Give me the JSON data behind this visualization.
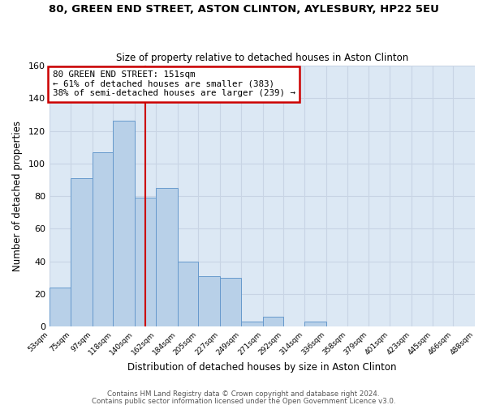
{
  "title": "80, GREEN END STREET, ASTON CLINTON, AYLESBURY, HP22 5EU",
  "subtitle": "Size of property relative to detached houses in Aston Clinton",
  "xlabel": "Distribution of detached houses by size in Aston Clinton",
  "ylabel": "Number of detached properties",
  "bin_edges": [
    53,
    75,
    97,
    118,
    140,
    162,
    184,
    205,
    227,
    249,
    271,
    292,
    314,
    336,
    358,
    379,
    401,
    423,
    445,
    466,
    488
  ],
  "bin_labels": [
    "53sqm",
    "75sqm",
    "97sqm",
    "118sqm",
    "140sqm",
    "162sqm",
    "184sqm",
    "205sqm",
    "227sqm",
    "249sqm",
    "271sqm",
    "292sqm",
    "314sqm",
    "336sqm",
    "358sqm",
    "379sqm",
    "401sqm",
    "423sqm",
    "445sqm",
    "466sqm",
    "488sqm"
  ],
  "bar_heights": [
    24,
    91,
    107,
    126,
    79,
    85,
    40,
    31,
    30,
    3,
    6,
    0,
    3,
    0,
    0,
    0,
    0,
    0,
    0,
    0
  ],
  "bar_color": "#b8d0e8",
  "bar_edge_color": "#6699cc",
  "grid_color": "#c8d4e4",
  "plot_bg_color": "#dce8f4",
  "fig_bg_color": "#ffffff",
  "property_size": 151,
  "vline_color": "#cc0000",
  "annotation_line1": "80 GREEN END STREET: 151sqm",
  "annotation_line2": "← 61% of detached houses are smaller (383)",
  "annotation_line3": "38% of semi-detached houses are larger (239) →",
  "annotation_box_color": "#ffffff",
  "annotation_box_edge": "#cc0000",
  "footer1": "Contains HM Land Registry data © Crown copyright and database right 2024.",
  "footer2": "Contains public sector information licensed under the Open Government Licence v3.0.",
  "ylim": [
    0,
    160
  ],
  "yticks": [
    0,
    20,
    40,
    60,
    80,
    100,
    120,
    140,
    160
  ]
}
